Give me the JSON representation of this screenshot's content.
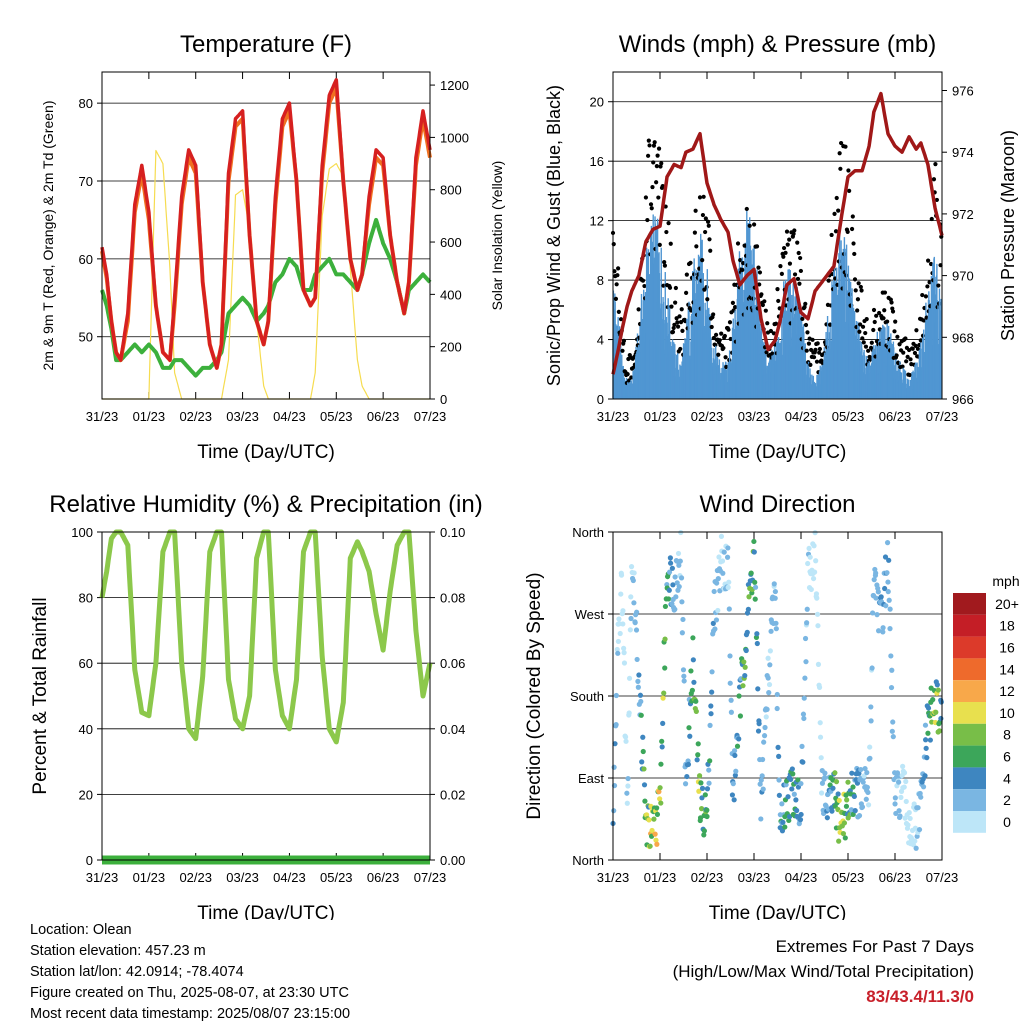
{
  "colors": {
    "temp2m": "#d62020",
    "temp9m": "#f07020",
    "dewpoint": "#3cb03c",
    "solar": "#f6dc50",
    "wind": "#5096d2",
    "gust": "#000000",
    "pressure": "#a01818",
    "rh": "#8cc84b",
    "precip": "#3cb03c",
    "extremes": "#c8202a"
  },
  "x_ticks": [
    "31/23",
    "01/23",
    "02/23",
    "03/23",
    "04/23",
    "05/23",
    "06/23",
    "07/23"
  ],
  "x_label": "Time (Day/UTC)",
  "chart_data": [
    {
      "type": "line",
      "title": "Temperature (F)",
      "ylabel": "2m & 9m T (Red, Orange) & 2m Td (Green)",
      "y2label": "Solar Insolation (Yellow)",
      "ylim": [
        42,
        84
      ],
      "yticks": [
        50,
        60,
        70,
        80
      ],
      "y2lim": [
        0,
        1250
      ],
      "y2ticks": [
        0,
        200,
        400,
        600,
        800,
        1000,
        1200
      ],
      "x": [
        0,
        0.1,
        0.2,
        0.3,
        0.4,
        0.55,
        0.7,
        0.85,
        1,
        1.15,
        1.3,
        1.45,
        1.55,
        1.7,
        1.85,
        2,
        2.15,
        2.3,
        2.45,
        2.55,
        2.7,
        2.85,
        3,
        3.15,
        3.3,
        3.45,
        3.55,
        3.7,
        3.85,
        4,
        4.15,
        4.3,
        4.45,
        4.55,
        4.7,
        4.85,
        5,
        5.15,
        5.3,
        5.45,
        5.55,
        5.7,
        5.85,
        6,
        6.15,
        6.3,
        6.45,
        6.55,
        6.7,
        6.85,
        7
      ],
      "series": [
        {
          "values": [
            61.5,
            58,
            52,
            48,
            47,
            53,
            67,
            72,
            66,
            54,
            48,
            47,
            55,
            68,
            74,
            72,
            57,
            49,
            46,
            49,
            71,
            78,
            79,
            63,
            52,
            49,
            52,
            68,
            78,
            80,
            70,
            56,
            54,
            55,
            72,
            81,
            83,
            70,
            60,
            56,
            58,
            68,
            74,
            73,
            63,
            57,
            53,
            57,
            73,
            79,
            74
          ]
        },
        {
          "values": [
            61,
            57.5,
            52,
            48,
            47,
            52,
            66,
            71,
            65,
            54,
            48,
            47,
            54,
            67,
            73,
            71,
            57,
            49,
            46,
            49,
            70,
            77,
            78,
            63,
            52,
            49,
            52,
            67,
            77,
            79,
            70,
            56,
            54,
            55,
            71,
            80,
            82,
            70,
            60,
            56,
            58,
            67,
            73,
            72,
            63,
            57,
            53,
            57,
            72,
            78,
            73
          ]
        },
        {
          "values": [
            56,
            54,
            51,
            47,
            47,
            48,
            49,
            48,
            49,
            48,
            46,
            46,
            47,
            47,
            46,
            45,
            46,
            46,
            47,
            48,
            53,
            54,
            55,
            54,
            52,
            53,
            54,
            57,
            58,
            60,
            59,
            56,
            56,
            58,
            59,
            60,
            58,
            58,
            57,
            56,
            58,
            62,
            65,
            62,
            60,
            57,
            53,
            56,
            57,
            58,
            57
          ]
        },
        {
          "values": [
            0,
            0,
            0,
            0,
            0,
            0,
            0,
            0,
            0,
            950,
            900,
            500,
            100,
            0,
            0,
            0,
            0,
            0,
            0,
            0,
            150,
            780,
            800,
            650,
            300,
            50,
            0,
            0,
            0,
            0,
            0,
            0,
            0,
            100,
            700,
            880,
            900,
            850,
            500,
            150,
            50,
            0,
            0,
            0,
            0,
            0,
            0,
            0,
            0,
            0,
            0
          ]
        }
      ]
    },
    {
      "type": "scatter",
      "title": "Winds (mph) & Pressure (mb)",
      "ylabel": "Sonic/Prop Wind & Gust (Blue, Black)",
      "y2label": "Station Pressure (Maroon)",
      "ylim": [
        0,
        22
      ],
      "yticks": [
        0,
        4,
        8,
        12,
        16,
        20
      ],
      "y2lim": [
        966,
        976.6
      ],
      "y2ticks": [
        966,
        968,
        970,
        972,
        974,
        976
      ],
      "x": [
        0,
        0.1,
        0.2,
        0.3,
        0.4,
        0.55,
        0.7,
        0.85,
        1,
        1.15,
        1.3,
        1.45,
        1.55,
        1.7,
        1.85,
        2,
        2.15,
        2.3,
        2.45,
        2.55,
        2.7,
        2.85,
        3,
        3.15,
        3.3,
        3.45,
        3.55,
        3.7,
        3.85,
        4,
        4.15,
        4.3,
        4.45,
        4.55,
        4.7,
        4.85,
        5,
        5.15,
        5.3,
        5.45,
        5.55,
        5.7,
        5.85,
        6,
        6.15,
        6.3,
        6.45,
        6.55,
        6.7,
        6.85,
        7
      ],
      "series": [
        {
          "values": [
            7,
            5,
            2,
            1,
            1,
            4,
            8,
            10,
            9,
            6,
            3,
            2,
            4,
            7,
            9,
            7,
            3,
            2,
            2,
            4,
            8,
            10,
            9,
            4,
            2,
            3,
            5,
            7,
            7,
            5,
            2,
            1,
            2,
            4,
            7,
            9,
            8,
            5,
            3,
            2,
            3,
            4,
            4,
            3,
            2,
            1,
            2,
            3,
            6,
            8,
            5
          ]
        },
        {
          "values": [
            11,
            8,
            4,
            2,
            3,
            6,
            13,
            17,
            15,
            11,
            7,
            5,
            7,
            10,
            12,
            11,
            6,
            4,
            4,
            6,
            10,
            11,
            10,
            7,
            4,
            5,
            8,
            10,
            10,
            8,
            4,
            3,
            4,
            6,
            11,
            15,
            14,
            9,
            6,
            4,
            5,
            6,
            6,
            5,
            4,
            3,
            4,
            6,
            10,
            14,
            9
          ]
        },
        {
          "values": [
            966.8,
            967.5,
            968.3,
            969,
            969.5,
            970,
            971.1,
            971.5,
            971.6,
            973.2,
            973.6,
            973.5,
            974,
            974.1,
            974.6,
            973,
            972.3,
            971.8,
            971.4,
            970.5,
            969.7,
            970,
            970.2,
            968.6,
            967.6,
            967.9,
            968.5,
            969.7,
            969.9,
            968.8,
            968.6,
            969.5,
            969.8,
            970,
            970.3,
            971.8,
            973.2,
            973.4,
            973.4,
            974.2,
            975.3,
            975.9,
            974.6,
            974.2,
            974,
            974.5,
            974.1,
            974.3,
            973.6,
            972.2,
            971.3
          ]
        }
      ]
    },
    {
      "type": "line",
      "title": "Relative Humidity (%) & Precipitation (in)",
      "ylabel": "Percent & Total Rainfall",
      "ylim": [
        0,
        100
      ],
      "yticks": [
        0,
        20,
        40,
        60,
        80,
        100
      ],
      "y2lim": [
        0,
        0.1
      ],
      "y2ticks": [
        "0.00",
        "0.02",
        "0.04",
        "0.06",
        "0.08",
        "0.10"
      ],
      "x": [
        0,
        0.1,
        0.2,
        0.3,
        0.4,
        0.55,
        0.7,
        0.85,
        1,
        1.15,
        1.3,
        1.45,
        1.55,
        1.7,
        1.85,
        2,
        2.15,
        2.3,
        2.45,
        2.55,
        2.7,
        2.85,
        3,
        3.15,
        3.3,
        3.45,
        3.55,
        3.7,
        3.85,
        4,
        4.15,
        4.3,
        4.45,
        4.55,
        4.7,
        4.85,
        5,
        5.15,
        5.3,
        5.45,
        5.55,
        5.7,
        5.85,
        6,
        6.15,
        6.3,
        6.45,
        6.55,
        6.7,
        6.85,
        7
      ],
      "series": [
        {
          "values": [
            80,
            88,
            98,
            100,
            100,
            96,
            58,
            45,
            44,
            60,
            94,
            100,
            100,
            60,
            40,
            37,
            56,
            94,
            100,
            100,
            55,
            43,
            40,
            50,
            92,
            100,
            100,
            58,
            44,
            40,
            55,
            94,
            100,
            100,
            62,
            40,
            36,
            48,
            92,
            97,
            94,
            88,
            75,
            64,
            82,
            96,
            100,
            100,
            70,
            50,
            60
          ]
        },
        {
          "values": [
            0,
            0,
            0,
            0,
            0,
            0,
            0,
            0,
            0,
            0,
            0,
            0,
            0,
            0,
            0,
            0,
            0,
            0,
            0,
            0,
            0,
            0,
            0,
            0,
            0,
            0,
            0,
            0,
            0,
            0,
            0,
            0,
            0,
            0,
            0,
            0,
            0,
            0,
            0,
            0,
            0,
            0,
            0,
            0,
            0,
            0,
            0,
            0,
            0,
            0,
            0
          ]
        }
      ]
    },
    {
      "type": "scatter",
      "title": "Wind Direction",
      "ylabel": "Direction (Colored By Speed)",
      "ylim": [
        0,
        360
      ],
      "yticks": [
        {
          "value": 0,
          "label": "North"
        },
        {
          "value": 90,
          "label": "East"
        },
        {
          "value": 180,
          "label": "South"
        },
        {
          "value": 270,
          "label": "West"
        },
        {
          "value": 360,
          "label": "North"
        }
      ],
      "x": [
        0,
        0.1,
        0.2,
        0.3,
        0.4,
        0.55,
        0.7,
        0.85,
        1,
        1.15,
        1.3,
        1.45,
        1.55,
        1.7,
        1.85,
        2,
        2.15,
        2.3,
        2.45,
        2.55,
        2.7,
        2.85,
        3,
        3.15,
        3.3,
        3.45,
        3.55,
        3.7,
        3.85,
        4,
        4.15,
        4.3,
        4.45,
        4.55,
        4.7,
        4.85,
        5,
        5.15,
        5.3,
        5.45,
        5.55,
        5.7,
        5.85,
        6,
        6.15,
        6.3,
        6.45,
        6.55,
        6.7,
        6.85,
        7
      ],
      "directions": [
        30,
        250,
        300,
        60,
        340,
        200,
        40,
        30,
        60,
        320,
        300,
        340,
        80,
        220,
        60,
        50,
        270,
        330,
        320,
        70,
        170,
        260,
        340,
        60,
        200,
        300,
        40,
        70,
        80,
        60,
        310,
        340,
        80,
        60,
        70,
        40,
        60,
        80,
        70,
        80,
        320,
        260,
        330,
        60,
        80,
        40,
        30,
        60,
        150,
        170,
        160
      ],
      "speeds": [
        4,
        1,
        0,
        1,
        1,
        3,
        8,
        10,
        9,
        5,
        2,
        1,
        3,
        6,
        8,
        6,
        2,
        1,
        1,
        3,
        5,
        7,
        6,
        3,
        1,
        2,
        4,
        5,
        5,
        4,
        1,
        0,
        1,
        3,
        6,
        8,
        7,
        4,
        2,
        1,
        2,
        3,
        3,
        2,
        1,
        0,
        1,
        2,
        6,
        9,
        5
      ],
      "legend": {
        "title": "mph",
        "labels": [
          "20+",
          "18",
          "16",
          "14",
          "12",
          "10",
          "8",
          "6",
          "4",
          "2",
          "0"
        ],
        "colors": [
          "#a11a1e",
          "#c41e26",
          "#dc3a2a",
          "#ee6a2c",
          "#f8a84a",
          "#e8e04e",
          "#78be48",
          "#3ca65a",
          "#3e86c0",
          "#7ab6e2",
          "#bde6f8"
        ]
      }
    }
  ],
  "footer": {
    "location": "Location: Olean",
    "elevation": "Station elevation: 457.23 m",
    "latlon": "Station lat/lon: 42.0914; -78.4074",
    "created": "Figure created on Thu, 2025-08-07, at 23:30 UTC",
    "recent": "Most recent data timestamp: 2025/08/07 23:15:00",
    "extremes_title": "Extremes For Past 7 Days",
    "extremes_sub": "(High/Low/Max Wind/Total Precipitation)",
    "extremes_value": "83/43.4/11.3/0"
  }
}
